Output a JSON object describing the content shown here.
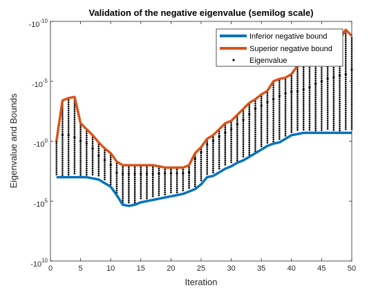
{
  "chart_data": {
    "type": "line",
    "title": "Validation of the negative eigenvalue (semilog scale)",
    "xlabel": "Iteration",
    "ylabel": "Eigenvalue and Bounds",
    "xlim": [
      0,
      50
    ],
    "ylim_exponent": [
      -10,
      10
    ],
    "y_scale": "symmetric log (negative values)",
    "x_ticks": [
      "0",
      "5",
      "10",
      "15",
      "20",
      "25",
      "30",
      "35",
      "40",
      "45",
      "50"
    ],
    "y_ticks": [
      {
        "base": "-10",
        "exp": "-10",
        "value": -10
      },
      {
        "base": "-10",
        "exp": "-5",
        "value": -5
      },
      {
        "base": "-10",
        "exp": "0",
        "value": 0
      },
      {
        "base": "-10",
        "exp": "5",
        "value": 5
      },
      {
        "base": "-10",
        "exp": "10",
        "value": 10
      }
    ],
    "grid": false,
    "legend_position": "top-right",
    "x": [
      1,
      2,
      3,
      4,
      5,
      6,
      7,
      8,
      9,
      10,
      11,
      12,
      13,
      14,
      15,
      16,
      17,
      18,
      19,
      20,
      21,
      22,
      23,
      24,
      25,
      26,
      27,
      28,
      29,
      30,
      31,
      32,
      33,
      34,
      35,
      36,
      37,
      38,
      39,
      40,
      41,
      42,
      43,
      44,
      45,
      46,
      47,
      48,
      49,
      50
    ],
    "series": [
      {
        "name": "Inferior negative bound",
        "color": "#0072BD",
        "style": "line",
        "values_exponent": [
          3.0,
          3.0,
          3.0,
          3.0,
          3.0,
          3.0,
          3.1,
          3.2,
          3.5,
          3.8,
          4.5,
          5.3,
          5.4,
          5.3,
          5.1,
          5.0,
          4.9,
          4.8,
          4.7,
          4.6,
          4.5,
          4.4,
          4.2,
          4.0,
          3.6,
          3.0,
          2.9,
          2.6,
          2.3,
          2.1,
          1.8,
          1.6,
          1.3,
          1.0,
          0.7,
          0.4,
          0.2,
          0.1,
          -0.2,
          -0.5,
          -0.6,
          -0.7,
          -0.7,
          -0.7,
          -0.7,
          -0.7,
          -0.7,
          -0.7,
          -0.7,
          -0.7
        ]
      },
      {
        "name": "Superior negative bound",
        "color": "#D95319",
        "style": "line",
        "values_exponent": [
          0.0,
          -3.4,
          -3.6,
          -3.7,
          -1.5,
          -1.0,
          -0.5,
          0.1,
          0.6,
          1.0,
          1.7,
          2.0,
          2.0,
          2.0,
          2.0,
          2.0,
          2.0,
          2.1,
          2.2,
          2.2,
          2.2,
          2.2,
          2.0,
          1.0,
          0.5,
          -0.2,
          -0.5,
          -1.0,
          -1.5,
          -1.7,
          -2.2,
          -2.7,
          -3.2,
          -3.5,
          -3.9,
          -4.2,
          -5.0,
          -5.2,
          -5.3,
          -5.6,
          -6.3,
          -6.5,
          -7.0,
          -7.3,
          -7.5,
          -7.6,
          -8.2,
          -8.5,
          -9.3,
          -8.8
        ]
      },
      {
        "name": "Eigenvalue",
        "color": "#000000",
        "style": "markers",
        "values_exponent": [
          0.0,
          -0.5,
          -0.5,
          -0.3,
          0.0,
          0.2,
          0.6,
          1.2,
          1.6,
          2.0,
          2.6,
          2.7,
          2.7,
          2.7,
          2.7,
          2.7,
          2.7,
          2.7,
          2.7,
          2.7,
          2.7,
          2.7,
          2.6,
          1.5,
          0.9,
          0.3,
          0.0,
          -0.4,
          -0.7,
          -1.0,
          -1.4,
          -1.8,
          -2.3,
          -2.7,
          -3.0,
          -3.3,
          -3.5,
          -3.8,
          -4.0,
          -4.1,
          -4.2,
          -4.3,
          -4.5,
          -4.8,
          -5.0,
          -5.2,
          -5.3,
          -5.5,
          -5.6,
          -6.0
        ]
      }
    ]
  }
}
